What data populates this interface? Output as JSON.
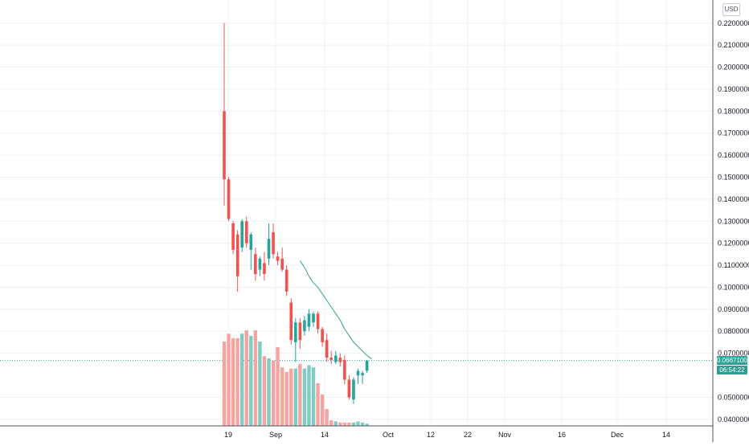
{
  "currency": "USD",
  "last_price": "0.06671000",
  "countdown": "06:54:22",
  "colors": {
    "up": "#26a69a",
    "down": "#ef5350",
    "ma": "#3d9b96",
    "grid": "#eef0f3",
    "axis": "#131722",
    "vol_up": "#80cbc4",
    "vol_down": "#f4a5a2"
  },
  "price_axis": {
    "labels": [
      "0.22000000",
      "0.21000000",
      "0.20000000",
      "0.19000000",
      "0.18000000",
      "0.17000000",
      "0.16000000",
      "0.15000000",
      "0.14000000",
      "0.13000000",
      "0.12000000",
      "0.11000000",
      "0.10000000",
      "0.09000000",
      "0.08000000",
      "0.07000000",
      "0.05000000",
      "0.04000000"
    ]
  },
  "time_axis": {
    "labels": [
      "19",
      "Sep",
      "14",
      "Oct",
      "12",
      "22",
      "Nov",
      "16",
      "Dec",
      "14"
    ]
  },
  "chart_data": {
    "type": "candlestick",
    "interval": "daily",
    "ylim": [
      0.037,
      0.2305
    ],
    "candles": [
      {
        "o": 0.18,
        "h": 0.22,
        "l": 0.137,
        "c": 0.149
      },
      {
        "o": 0.149,
        "h": 0.15,
        "l": 0.13,
        "c": 0.131
      },
      {
        "o": 0.129,
        "h": 0.13,
        "l": 0.115,
        "c": 0.117
      },
      {
        "o": 0.124,
        "h": 0.126,
        "l": 0.098,
        "c": 0.105
      },
      {
        "o": 0.118,
        "h": 0.131,
        "l": 0.116,
        "c": 0.13
      },
      {
        "o": 0.13,
        "h": 0.132,
        "l": 0.118,
        "c": 0.12
      },
      {
        "o": 0.117,
        "h": 0.125,
        "l": 0.108,
        "c": 0.124
      },
      {
        "o": 0.115,
        "h": 0.118,
        "l": 0.103,
        "c": 0.106
      },
      {
        "o": 0.108,
        "h": 0.114,
        "l": 0.105,
        "c": 0.113
      },
      {
        "o": 0.111,
        "h": 0.116,
        "l": 0.103,
        "c": 0.106
      },
      {
        "o": 0.113,
        "h": 0.129,
        "l": 0.11,
        "c": 0.122
      },
      {
        "o": 0.125,
        "h": 0.129,
        "l": 0.113,
        "c": 0.115
      },
      {
        "o": 0.114,
        "h": 0.116,
        "l": 0.11,
        "c": 0.112
      },
      {
        "o": 0.113,
        "h": 0.118,
        "l": 0.107,
        "c": 0.108
      },
      {
        "o": 0.108,
        "h": 0.11,
        "l": 0.096,
        "c": 0.098
      },
      {
        "o": 0.093,
        "h": 0.095,
        "l": 0.074,
        "c": 0.076
      },
      {
        "o": 0.075,
        "h": 0.086,
        "l": 0.066,
        "c": 0.084
      },
      {
        "o": 0.084,
        "h": 0.086,
        "l": 0.072,
        "c": 0.076
      },
      {
        "o": 0.08,
        "h": 0.087,
        "l": 0.078,
        "c": 0.085
      },
      {
        "o": 0.082,
        "h": 0.09,
        "l": 0.08,
        "c": 0.088
      },
      {
        "o": 0.084,
        "h": 0.089,
        "l": 0.082,
        "c": 0.088
      },
      {
        "o": 0.088,
        "h": 0.089,
        "l": 0.079,
        "c": 0.081
      },
      {
        "o": 0.081,
        "h": 0.082,
        "l": 0.073,
        "c": 0.075
      },
      {
        "o": 0.076,
        "h": 0.079,
        "l": 0.066,
        "c": 0.068
      },
      {
        "o": 0.068,
        "h": 0.071,
        "l": 0.065,
        "c": 0.067
      },
      {
        "o": 0.066,
        "h": 0.071,
        "l": 0.065,
        "c": 0.069
      },
      {
        "o": 0.068,
        "h": 0.07,
        "l": 0.064,
        "c": 0.066
      },
      {
        "o": 0.067,
        "h": 0.069,
        "l": 0.056,
        "c": 0.058
      },
      {
        "o": 0.058,
        "h": 0.06,
        "l": 0.049,
        "c": 0.05
      },
      {
        "o": 0.049,
        "h": 0.059,
        "l": 0.047,
        "c": 0.058
      },
      {
        "o": 0.06,
        "h": 0.063,
        "l": 0.056,
        "c": 0.062
      },
      {
        "o": 0.06,
        "h": 0.062,
        "l": 0.056,
        "c": 0.061
      },
      {
        "o": 0.062,
        "h": 0.067,
        "l": 0.061,
        "c": 0.06671
      }
    ],
    "moving_average": {
      "start_index": 17,
      "values": [
        0.112,
        0.109,
        0.105,
        0.102,
        0.1,
        0.097,
        0.094,
        0.091,
        0.088,
        0.085,
        0.081,
        0.078,
        0.075,
        0.073,
        0.071,
        0.069,
        0.0675
      ]
    },
    "volume": [
      0.75,
      0.82,
      0.78,
      0.78,
      0.82,
      0.85,
      0.8,
      0.85,
      0.75,
      0.62,
      0.6,
      0.58,
      0.7,
      0.52,
      0.48,
      0.51,
      0.51,
      0.55,
      0.51,
      0.54,
      0.52,
      0.38,
      0.28,
      0.15,
      0.05,
      0.04,
      0.03,
      0.03,
      0.03,
      0.03,
      0.04,
      0.03,
      0.02
    ]
  }
}
